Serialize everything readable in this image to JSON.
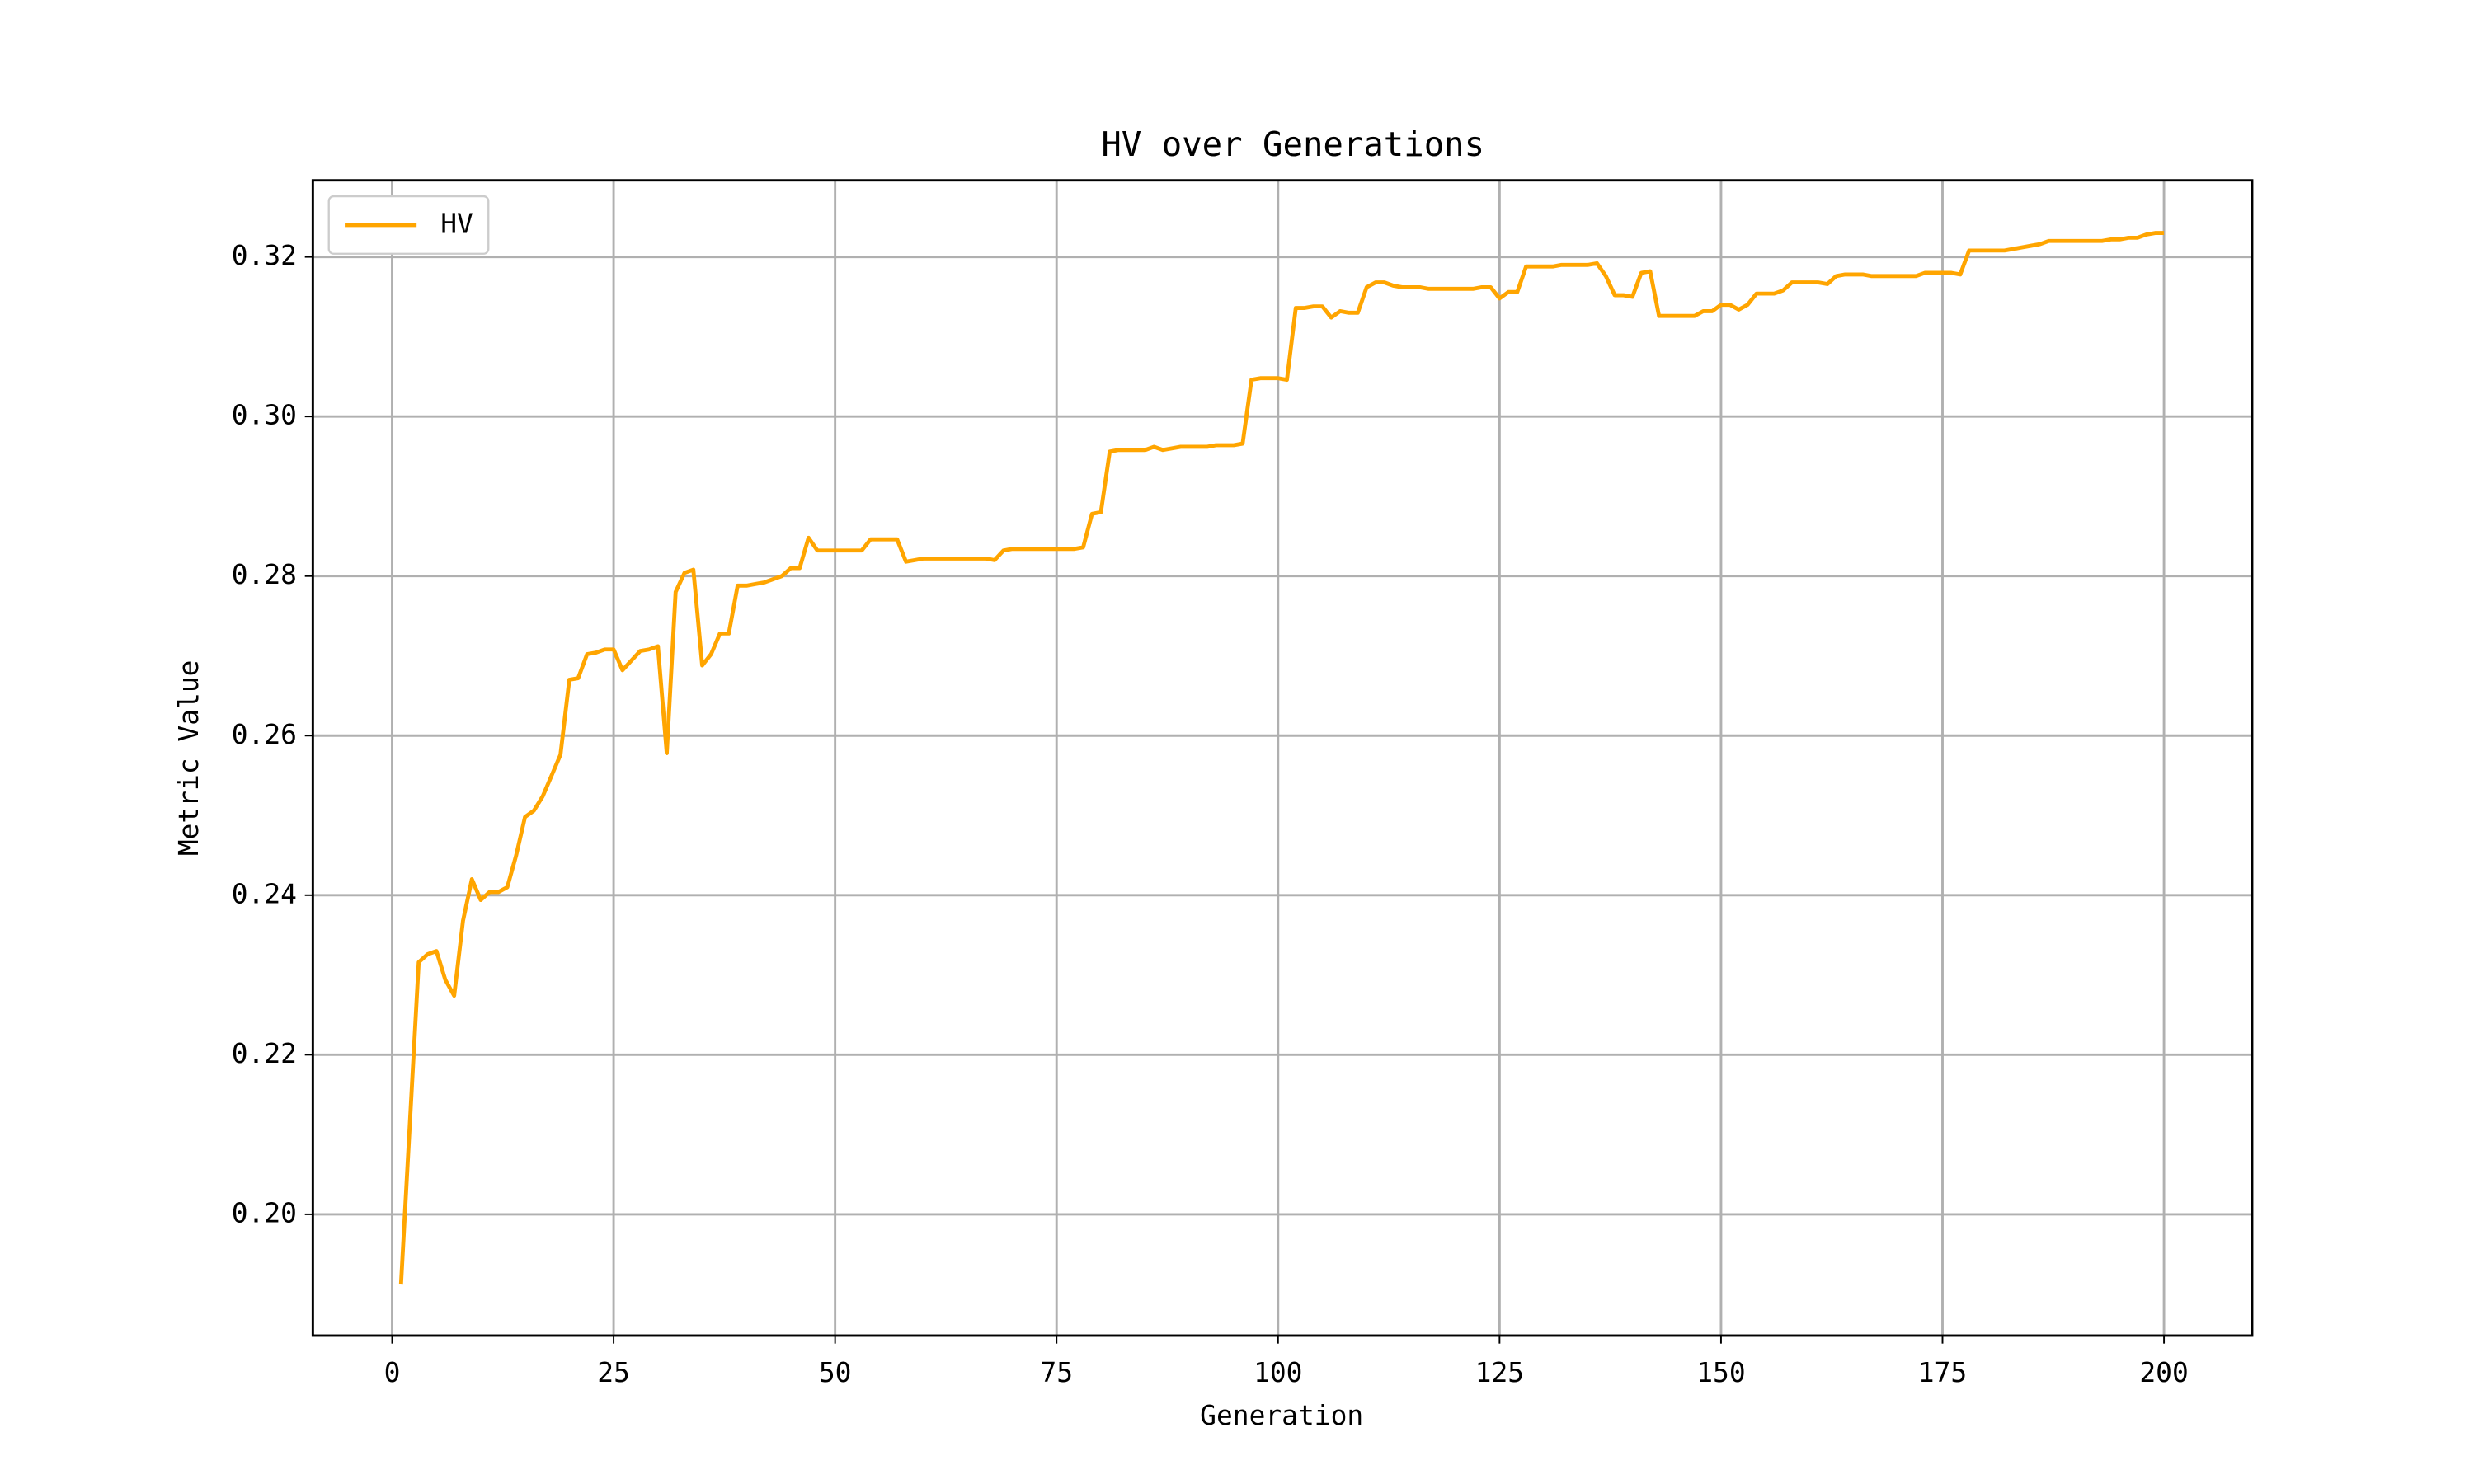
{
  "chart_data": {
    "type": "line",
    "title": "HV over Generations",
    "xlabel": "Generation",
    "ylabel": "Metric Value",
    "x": [
      1,
      2,
      3,
      4,
      5,
      6,
      7,
      8,
      9,
      10,
      11,
      12,
      13,
      14,
      15,
      16,
      17,
      18,
      19,
      20,
      21,
      22,
      23,
      24,
      25,
      26,
      27,
      28,
      29,
      30,
      31,
      32,
      33,
      34,
      35,
      36,
      37,
      38,
      39,
      40,
      41,
      42,
      43,
      44,
      45,
      46,
      47,
      48,
      49,
      50,
      51,
      52,
      53,
      54,
      55,
      56,
      57,
      58,
      59,
      60,
      61,
      62,
      63,
      64,
      65,
      66,
      67,
      68,
      69,
      70,
      71,
      72,
      73,
      74,
      75,
      76,
      77,
      78,
      79,
      80,
      81,
      82,
      83,
      84,
      85,
      86,
      87,
      88,
      89,
      90,
      91,
      92,
      93,
      94,
      95,
      96,
      97,
      98,
      99,
      100,
      101,
      102,
      103,
      104,
      105,
      106,
      107,
      108,
      109,
      110,
      111,
      112,
      113,
      114,
      115,
      116,
      117,
      118,
      119,
      120,
      121,
      122,
      123,
      124,
      125,
      126,
      127,
      128,
      129,
      130,
      131,
      132,
      133,
      134,
      135,
      136,
      137,
      138,
      139,
      140,
      141,
      142,
      143,
      144,
      145,
      146,
      147,
      148,
      149,
      150,
      151,
      152,
      153,
      154,
      155,
      156,
      157,
      158,
      159,
      160,
      161,
      162,
      163,
      164,
      165,
      166,
      167,
      168,
      169,
      170,
      171,
      172,
      173,
      174,
      175,
      176,
      177,
      178,
      179,
      180,
      181,
      182,
      183,
      184,
      185,
      186,
      187,
      188,
      189,
      190,
      191,
      192,
      193,
      194,
      195,
      196,
      197,
      198,
      199,
      200
    ],
    "series": [
      {
        "name": "HV",
        "color": "#ffa500",
        "values": [
          0.1912,
          0.2114,
          0.2316,
          0.2326,
          0.233,
          0.2294,
          0.2274,
          0.2368,
          0.242,
          0.2394,
          0.2404,
          0.2404,
          0.241,
          0.245,
          0.2498,
          0.2506,
          0.2524,
          0.255,
          0.2576,
          0.267,
          0.2672,
          0.2702,
          0.2704,
          0.2708,
          0.2708,
          0.2682,
          0.2694,
          0.2706,
          0.2708,
          0.2712,
          0.2578,
          0.278,
          0.2804,
          0.2808,
          0.2688,
          0.2702,
          0.2728,
          0.2728,
          0.2788,
          0.2788,
          0.279,
          0.2792,
          0.2796,
          0.28,
          0.281,
          0.281,
          0.2848,
          0.2832,
          0.2832,
          0.2832,
          0.2832,
          0.2832,
          0.2832,
          0.2846,
          0.2846,
          0.2846,
          0.2846,
          0.2818,
          0.282,
          0.2822,
          0.2822,
          0.2822,
          0.2822,
          0.2822,
          0.2822,
          0.2822,
          0.2822,
          0.282,
          0.2832,
          0.2834,
          0.2834,
          0.2834,
          0.2834,
          0.2834,
          0.2834,
          0.2834,
          0.2834,
          0.2836,
          0.2878,
          0.288,
          0.2956,
          0.2958,
          0.2958,
          0.2958,
          0.2958,
          0.2962,
          0.2958,
          0.296,
          0.2962,
          0.2962,
          0.2962,
          0.2962,
          0.2964,
          0.2964,
          0.2964,
          0.2966,
          0.3046,
          0.3048,
          0.3048,
          0.3048,
          0.3046,
          0.3136,
          0.3136,
          0.3138,
          0.3138,
          0.3124,
          0.3132,
          0.313,
          0.313,
          0.3162,
          0.3168,
          0.3168,
          0.3164,
          0.3162,
          0.3162,
          0.3162,
          0.316,
          0.316,
          0.316,
          0.316,
          0.316,
          0.316,
          0.3162,
          0.3162,
          0.3148,
          0.3156,
          0.3156,
          0.3188,
          0.3188,
          0.3188,
          0.3188,
          0.319,
          0.319,
          0.319,
          0.319,
          0.3192,
          0.3176,
          0.3152,
          0.3152,
          0.315,
          0.318,
          0.3182,
          0.3126,
          0.3126,
          0.3126,
          0.3126,
          0.3126,
          0.3132,
          0.3132,
          0.314,
          0.314,
          0.3134,
          0.314,
          0.3154,
          0.3154,
          0.3154,
          0.3158,
          0.3168,
          0.3168,
          0.3168,
          0.3168,
          0.3166,
          0.3176,
          0.3178,
          0.3178,
          0.3178,
          0.3176,
          0.3176,
          0.3176,
          0.3176,
          0.3176,
          0.3176,
          0.318,
          0.318,
          0.318,
          0.318,
          0.3178,
          0.3208,
          0.3208,
          0.3208,
          0.3208,
          0.3208,
          0.321,
          0.3212,
          0.3214,
          0.3216,
          0.322,
          0.322,
          0.322,
          0.322,
          0.322,
          0.322,
          0.322,
          0.3222,
          0.3222,
          0.3224,
          0.3224,
          0.3228,
          0.323,
          0.323
        ]
      }
    ],
    "xlim": [
      -8.95,
      209.95
    ],
    "xticks": [
      0,
      25,
      50,
      75,
      100,
      125,
      150,
      175,
      200
    ],
    "ylim": [
      0.1848,
      0.3296
    ],
    "yticks": [
      {
        "value": 0.2,
        "label": "0.20"
      },
      0.22,
      0.24,
      0.26,
      0.28,
      {
        "value": 0.3,
        "label": "0.30"
      },
      0.32
    ],
    "grid": true,
    "legend": "upper left"
  }
}
